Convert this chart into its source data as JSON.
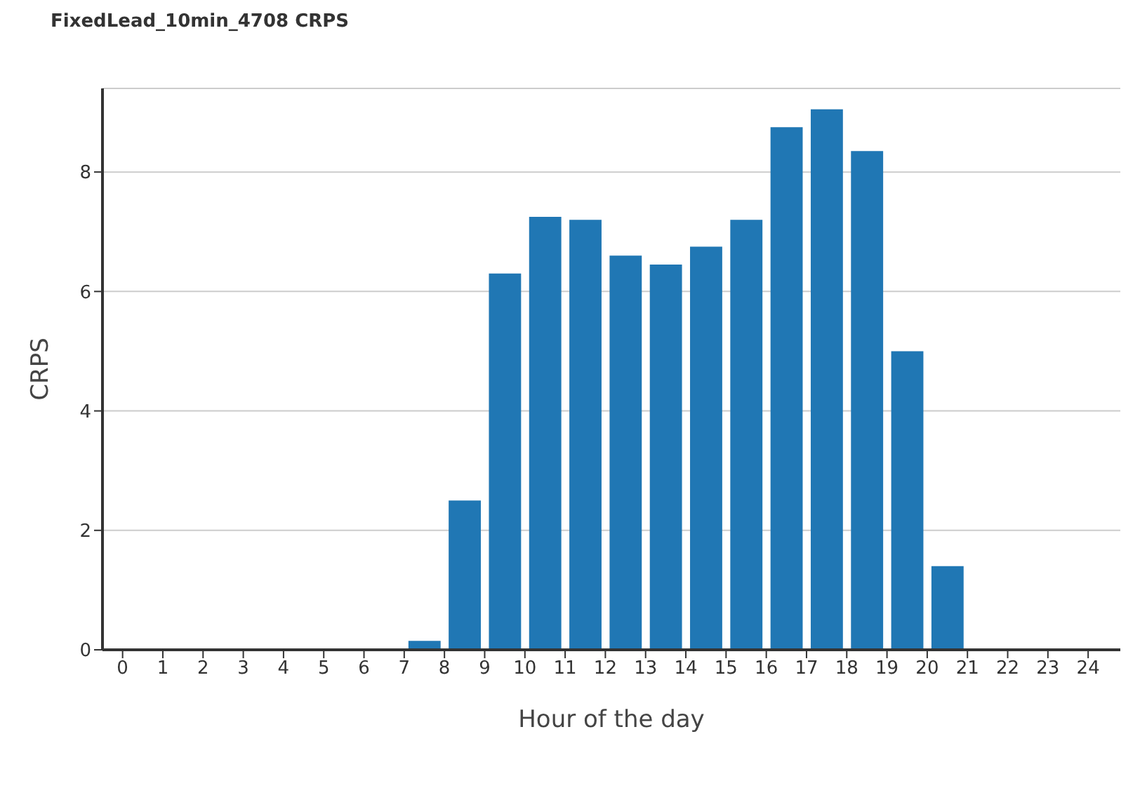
{
  "chart_data": {
    "type": "histogram",
    "title": "FixedLead_10min_4708 CRPS",
    "xlabel": "Hour of the day",
    "ylabel": "CRPS",
    "bins": [
      0,
      1,
      2,
      3,
      4,
      5,
      6,
      7,
      8,
      9,
      10,
      11,
      12,
      13,
      14,
      15,
      16,
      17,
      18,
      19,
      20,
      21,
      22,
      23,
      24
    ],
    "values": [
      0,
      0,
      0,
      0,
      0,
      0,
      0,
      0.15,
      2.5,
      6.3,
      7.25,
      7.2,
      6.6,
      6.45,
      6.75,
      7.2,
      8.75,
      9.05,
      8.35,
      5.0,
      1.4,
      0,
      0,
      0
    ],
    "color": "#2077b4",
    "xlim": [
      -0.5,
      24.8
    ],
    "xticks": [
      0,
      1,
      2,
      3,
      4,
      5,
      6,
      7,
      8,
      9,
      10,
      11,
      12,
      13,
      14,
      15,
      16,
      17,
      18,
      19,
      20,
      21,
      22,
      23,
      24
    ],
    "ylim": [
      0,
      9.4
    ],
    "yticks": [
      0,
      2,
      4,
      6,
      8
    ],
    "grid": "y"
  }
}
